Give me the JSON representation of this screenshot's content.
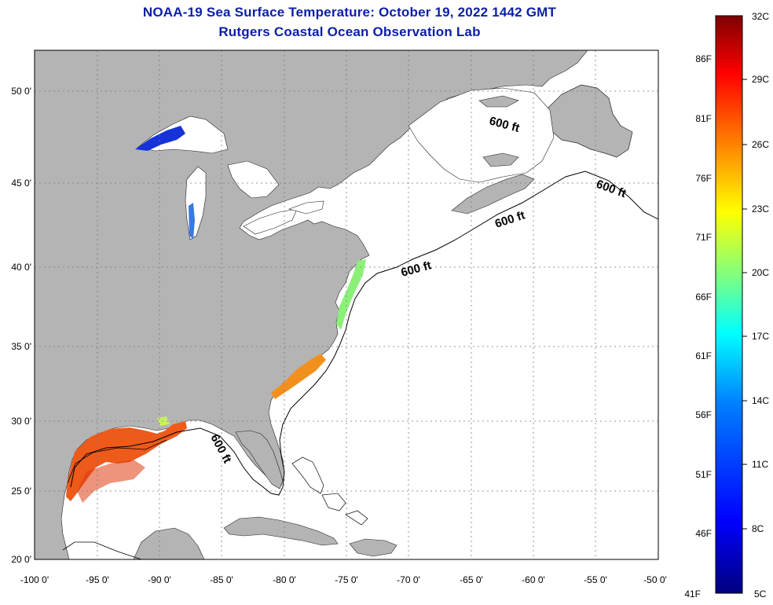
{
  "header": {
    "title": "NOAA-19 Sea Surface Temperature:  October 19, 2022 1442 GMT",
    "subtitle": "Rutgers Coastal Ocean Observation Lab"
  },
  "map": {
    "lat_ticks": [
      "20 0'",
      "25 0'",
      "30 0'",
      "35 0'",
      "40 0'",
      "45 0'",
      "50 0'"
    ],
    "lon_ticks": [
      "-100 0'",
      "-95 0'",
      "-90 0'",
      "-85 0'",
      "-80 0'",
      "-75 0'",
      "-70 0'",
      "-65 0'",
      "-60 0'",
      "-55 0'",
      "-50 0'"
    ],
    "isobath_labels": [
      "600 ft",
      "600 ft",
      "600 ft",
      "600 ft",
      "600 ft"
    ],
    "colors": {
      "land": "#b4b4b4",
      "water": "#ffffff",
      "grid": "#7a7a7a",
      "isobath": "#000000"
    }
  },
  "colorbar": {
    "celsius_labels": [
      "32C",
      "29C",
      "26C",
      "23C",
      "20C",
      "17C",
      "14C",
      "11C",
      "8C",
      "5C"
    ],
    "fahrenheit_labels": [
      "86F",
      "81F",
      "76F",
      "71F",
      "66F",
      "61F",
      "56F",
      "51F",
      "46F",
      "41F"
    ],
    "stops": [
      "#00007f",
      "#0000ff",
      "#007fff",
      "#00ffff",
      "#7fff7f",
      "#ffff00",
      "#ff7f00",
      "#ff0000",
      "#7f0000"
    ]
  }
}
